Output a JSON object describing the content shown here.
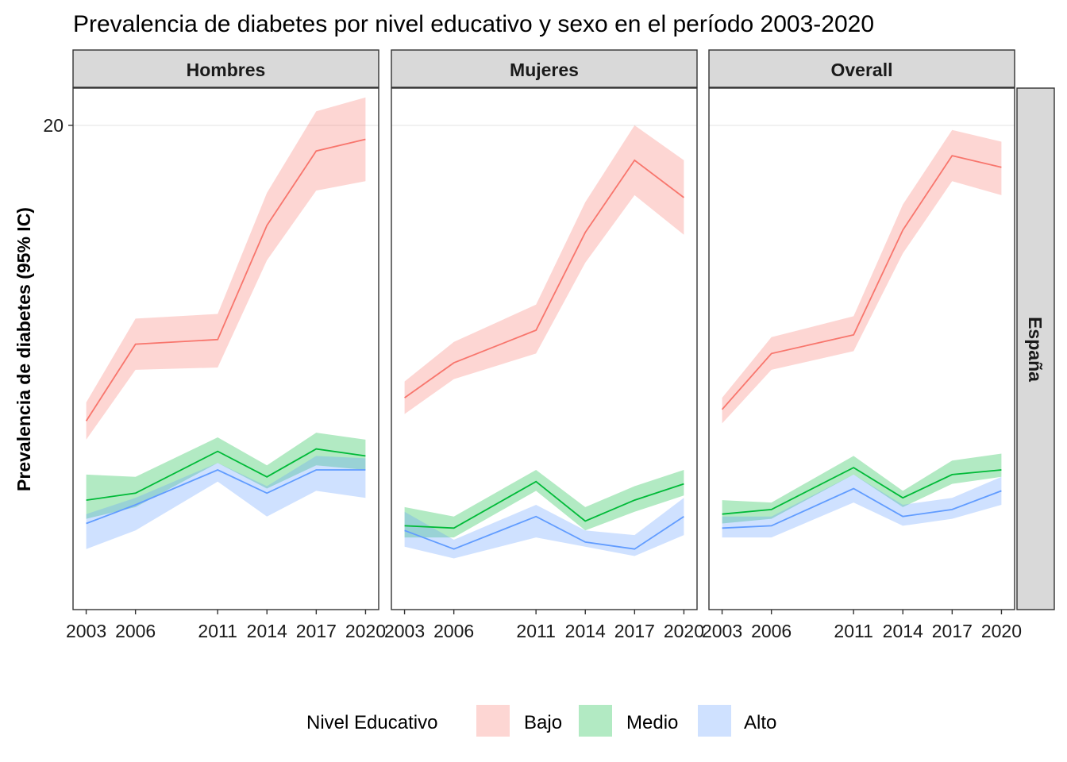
{
  "chart_data": {
    "type": "line",
    "title": "Prevalencia de diabetes por nivel educativo y sexo en el período 2003-2020",
    "xlabel": "",
    "ylabel": "Prevalencia de diabetes (95% IC)",
    "x": [
      2003,
      2006,
      2011,
      2014,
      2017,
      2020
    ],
    "y_tick_labels": [
      "20"
    ],
    "ylim": [
      -0.8,
      21.6
    ],
    "row_label": "España",
    "legend": {
      "title": "Nivel Educativo",
      "position": "bottom"
    },
    "panels": [
      {
        "name": "Hombres",
        "series": [
          {
            "name": "Bajo",
            "color": "#F8766D",
            "values": [
              7.3,
              10.6,
              10.8,
              15.7,
              18.9,
              19.4
            ],
            "lower": [
              6.5,
              9.5,
              9.6,
              14.2,
              17.2,
              17.6
            ],
            "upper": [
              8.1,
              11.7,
              11.9,
              17.1,
              20.6,
              21.2
            ]
          },
          {
            "name": "Medio",
            "color": "#00BA38",
            "values": [
              3.9,
              4.2,
              6.0,
              4.9,
              6.1,
              5.8
            ],
            "lower": [
              3.1,
              3.6,
              5.5,
              4.4,
              5.4,
              5.2
            ],
            "upper": [
              5.0,
              4.9,
              6.6,
              5.4,
              6.8,
              6.5
            ]
          },
          {
            "name": "Alto",
            "color": "#619CFF",
            "values": [
              2.9,
              3.7,
              5.2,
              4.2,
              5.2,
              5.2
            ],
            "lower": [
              1.8,
              2.6,
              4.7,
              3.2,
              4.3,
              4.0
            ],
            "upper": [
              3.3,
              4.0,
              5.5,
              4.5,
              5.8,
              5.7
            ]
          }
        ]
      },
      {
        "name": "Mujeres",
        "series": [
          {
            "name": "Bajo",
            "color": "#F8766D",
            "values": [
              8.3,
              9.8,
              11.2,
              15.4,
              18.5,
              16.9
            ],
            "lower": [
              7.6,
              9.1,
              10.2,
              14.1,
              17.0,
              15.3
            ],
            "upper": [
              9.0,
              10.7,
              12.3,
              16.7,
              20.0,
              18.5
            ]
          },
          {
            "name": "Medio",
            "color": "#00BA38",
            "values": [
              2.8,
              2.7,
              4.7,
              3.0,
              3.9,
              4.6
            ],
            "lower": [
              2.3,
              2.3,
              4.3,
              2.6,
              3.4,
              4.1
            ],
            "upper": [
              3.6,
              3.2,
              5.2,
              3.6,
              4.5,
              5.2
            ]
          },
          {
            "name": "Alto",
            "color": "#619CFF",
            "values": [
              2.6,
              1.8,
              3.2,
              2.1,
              1.8,
              3.2
            ],
            "lower": [
              1.9,
              1.4,
              2.3,
              1.9,
              1.5,
              2.4
            ],
            "upper": [
              3.4,
              2.2,
              3.7,
              2.6,
              2.4,
              4.0
            ]
          }
        ]
      },
      {
        "name": "Overall",
        "series": [
          {
            "name": "Bajo",
            "color": "#F8766D",
            "values": [
              7.8,
              10.2,
              11.0,
              15.5,
              18.7,
              18.2
            ],
            "lower": [
              7.2,
              9.5,
              10.3,
              14.5,
              17.6,
              17.0
            ],
            "upper": [
              8.3,
              10.9,
              11.8,
              16.6,
              19.8,
              19.3
            ]
          },
          {
            "name": "Medio",
            "color": "#00BA38",
            "values": [
              3.3,
              3.5,
              5.3,
              4.0,
              5.0,
              5.2
            ],
            "lower": [
              2.9,
              3.1,
              5.0,
              3.6,
              4.6,
              4.9
            ],
            "upper": [
              3.9,
              3.8,
              5.8,
              4.3,
              5.6,
              5.9
            ]
          },
          {
            "name": "Alto",
            "color": "#619CFF",
            "values": [
              2.7,
              2.8,
              4.4,
              3.2,
              3.5,
              4.3
            ],
            "lower": [
              2.3,
              2.3,
              3.8,
              2.8,
              3.1,
              3.7
            ],
            "upper": [
              3.2,
              3.2,
              5.0,
              3.7,
              4.0,
              4.9
            ]
          }
        ]
      }
    ]
  }
}
